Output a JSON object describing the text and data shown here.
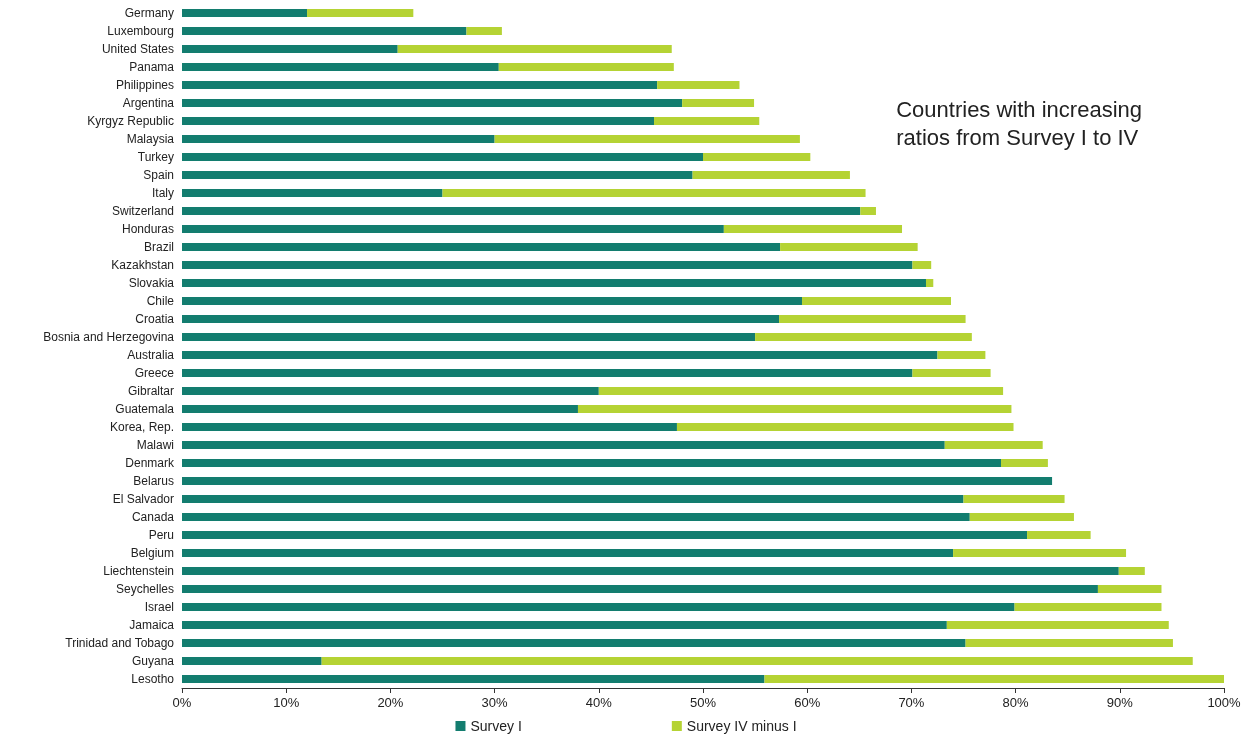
{
  "chart_data": {
    "type": "bar",
    "orientation": "horizontal",
    "stacked": true,
    "legend": "bottom",
    "grid": false,
    "categories": [
      "Germany",
      "Luxembourg",
      "United States",
      "Panama",
      "Philippines",
      "Argentina",
      "Kyrgyz Republic",
      "Malaysia",
      "Turkey",
      "Spain",
      "Italy",
      "Switzerland",
      "Honduras",
      "Brazil",
      "Kazakhstan",
      "Slovakia",
      "Chile",
      "Croatia",
      "Bosnia and Herzegovina",
      "Australia",
      "Greece",
      "Gibraltar",
      "Guatemala",
      "Korea, Rep.",
      "Malawi",
      "Denmark",
      "Belarus",
      "El Salvador",
      "Canada",
      "Peru",
      "Belgium",
      "Liechtenstein",
      "Seychelles",
      "Israel",
      "Jamaica",
      "Trinidad and Tobago",
      "Guyana",
      "Lesotho"
    ],
    "series": [
      {
        "name": "Survey I",
        "color": "#137d6f",
        "values": [
          12.0,
          27.3,
          20.7,
          30.4,
          45.6,
          48.0,
          45.3,
          30.0,
          50.0,
          49.0,
          25.0,
          65.1,
          52.0,
          57.4,
          70.1,
          71.4,
          59.5,
          57.3,
          55.0,
          72.5,
          70.1,
          40.0,
          38.0,
          47.5,
          73.2,
          78.6,
          83.5,
          75.0,
          75.6,
          81.1,
          74.0,
          89.9,
          87.9,
          79.9,
          73.4,
          75.2,
          13.4,
          55.9
        ]
      },
      {
        "name": "Survey IV minus I",
        "color": "#b5d334",
        "values": [
          10.2,
          3.4,
          26.3,
          16.8,
          7.9,
          6.9,
          10.1,
          29.3,
          10.3,
          15.1,
          40.6,
          1.5,
          17.1,
          13.2,
          1.8,
          0.7,
          14.3,
          17.9,
          20.8,
          4.6,
          7.5,
          38.8,
          41.6,
          32.3,
          9.4,
          4.5,
          0,
          9.7,
          10.0,
          6.1,
          16.6,
          2.5,
          6.1,
          14.1,
          21.3,
          19.9,
          83.6,
          44.1
        ]
      }
    ],
    "xlim": [
      0,
      100
    ],
    "xticks": [
      {
        "value": 0,
        "label": "0%"
      },
      {
        "value": 10,
        "label": "10%"
      },
      {
        "value": 20,
        "label": "20%"
      },
      {
        "value": 30,
        "label": "30%"
      },
      {
        "value": 40,
        "label": "40%"
      },
      {
        "value": 50,
        "label": "50%"
      },
      {
        "value": 60,
        "label": "60%"
      },
      {
        "value": 70,
        "label": "70%"
      },
      {
        "value": 80,
        "label": "80%"
      },
      {
        "value": 90,
        "label": "90%"
      },
      {
        "value": 100,
        "label": "100%"
      }
    ],
    "annotations": [
      "Countries with increasing\nratios from Survey I to IV"
    ]
  }
}
